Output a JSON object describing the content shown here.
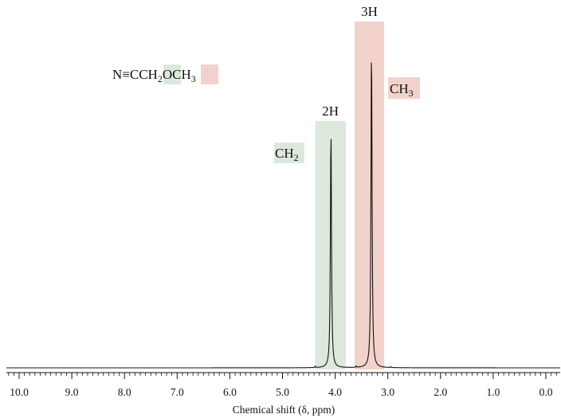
{
  "chart_data": {
    "type": "line",
    "title": "",
    "xlabel": "Chemical shift (δ, ppm)",
    "ylabel": "",
    "x_reversed": true,
    "xlim": [
      10.3,
      -0.3
    ],
    "x_ticks": [
      10.0,
      9.0,
      8.0,
      7.0,
      6.0,
      5.0,
      4.0,
      3.0,
      2.0,
      1.0,
      0.0
    ],
    "x_tick_labels": [
      "10.0",
      "9.0",
      "8.0",
      "7.0",
      "6.0",
      "5.0",
      "4.0",
      "3.0",
      "2.0",
      "1.0",
      "0.0"
    ],
    "grid": false,
    "legend": "none",
    "colors": {
      "line": "#111111",
      "ch2_highlight": "#dde8dc",
      "ch3_highlight": "#f2d2ca"
    },
    "series": [
      {
        "peaks": [
          {
            "shift": 4.08,
            "relative_height": 0.74
          },
          {
            "shift": 3.31,
            "relative_height": 1.0
          }
        ]
      }
    ],
    "highlights": [
      {
        "group": "CH2",
        "from": 4.38,
        "to": 3.8,
        "color": "#dde8dc",
        "integration": "2H"
      },
      {
        "group": "CH3",
        "from": 3.63,
        "to": 3.07,
        "color": "#f2d2ca",
        "integration": "3H"
      }
    ],
    "annotations": {
      "integration_ch2": "2H",
      "integration_ch3": "3H",
      "group_ch2": {
        "base": "CH",
        "sub": "2"
      },
      "group_ch3": {
        "base": "CH",
        "sub": "3"
      },
      "formula": {
        "prefix": "N",
        "triple_bond": "≡",
        "part1": "CCH",
        "sub1": "2",
        "part2": "OCH",
        "sub2": "3"
      }
    }
  }
}
